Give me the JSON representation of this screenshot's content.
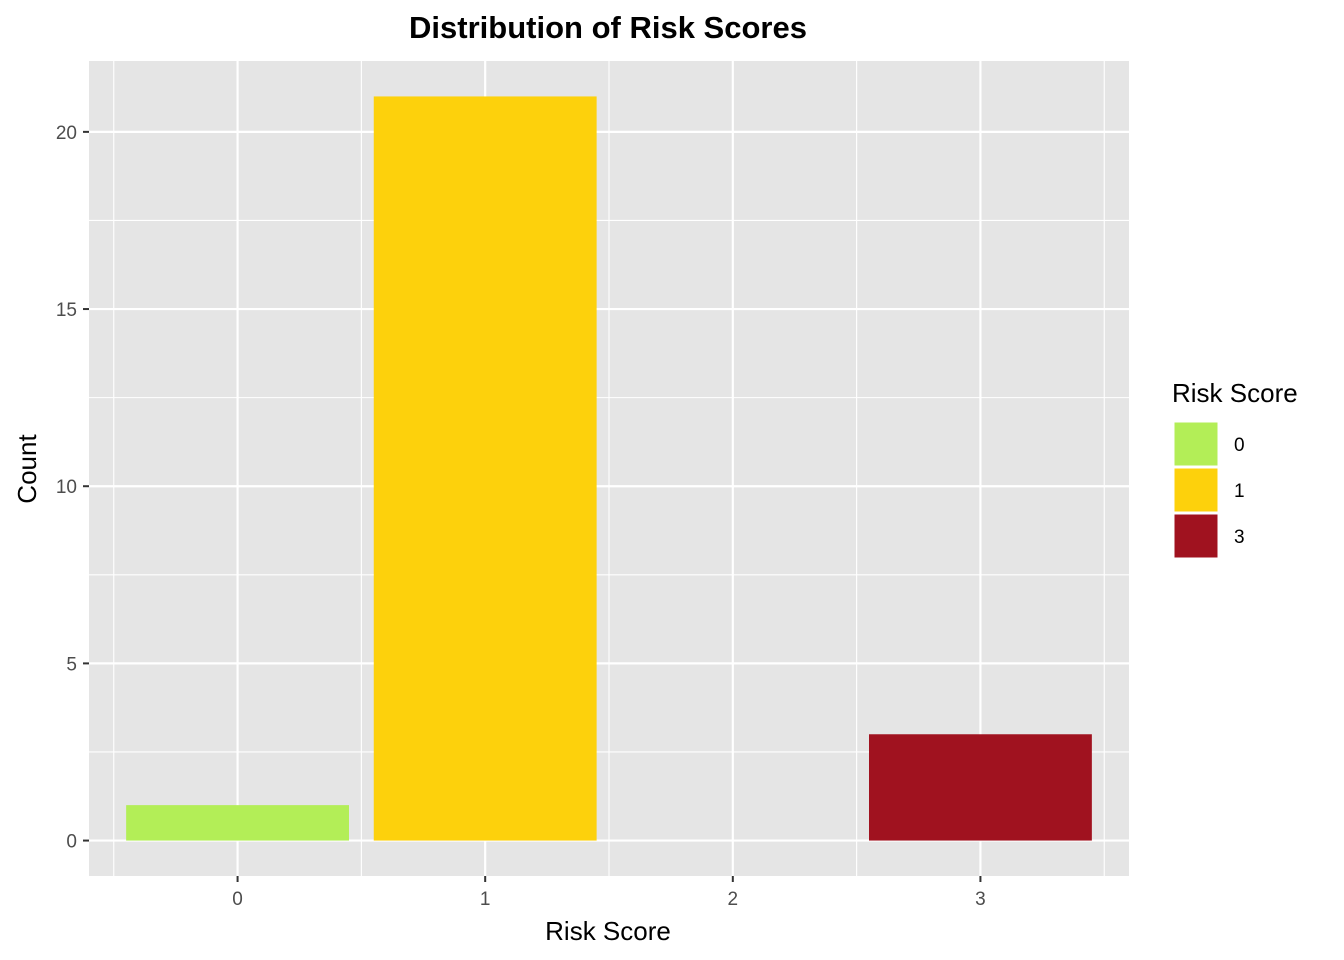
{
  "chart_data": {
    "type": "bar",
    "title": "Distribution of Risk Scores",
    "xlabel": "Risk Score",
    "ylabel": "Count",
    "x_ticks": [
      "0",
      "1",
      "2",
      "3"
    ],
    "y_ticks": [
      "0",
      "5",
      "10",
      "15",
      "20"
    ],
    "xlim": [
      -0.6,
      3.6
    ],
    "ylim": [
      -1,
      22
    ],
    "grid": true,
    "legend": {
      "title": "Risk Score",
      "position": "right",
      "entries": [
        {
          "label": "0",
          "color": "#B3EE57"
        },
        {
          "label": "1",
          "color": "#FDD10C"
        },
        {
          "label": "3",
          "color": "#A0121F"
        }
      ]
    },
    "bars": [
      {
        "category": "0",
        "x": 0,
        "value": 1,
        "color": "#B3EE57"
      },
      {
        "category": "1",
        "x": 1,
        "value": 21,
        "color": "#FDD10C"
      },
      {
        "category": "3",
        "x": 3,
        "value": 3,
        "color": "#A0121F"
      }
    ],
    "panel_background": "#E5E5E5"
  }
}
